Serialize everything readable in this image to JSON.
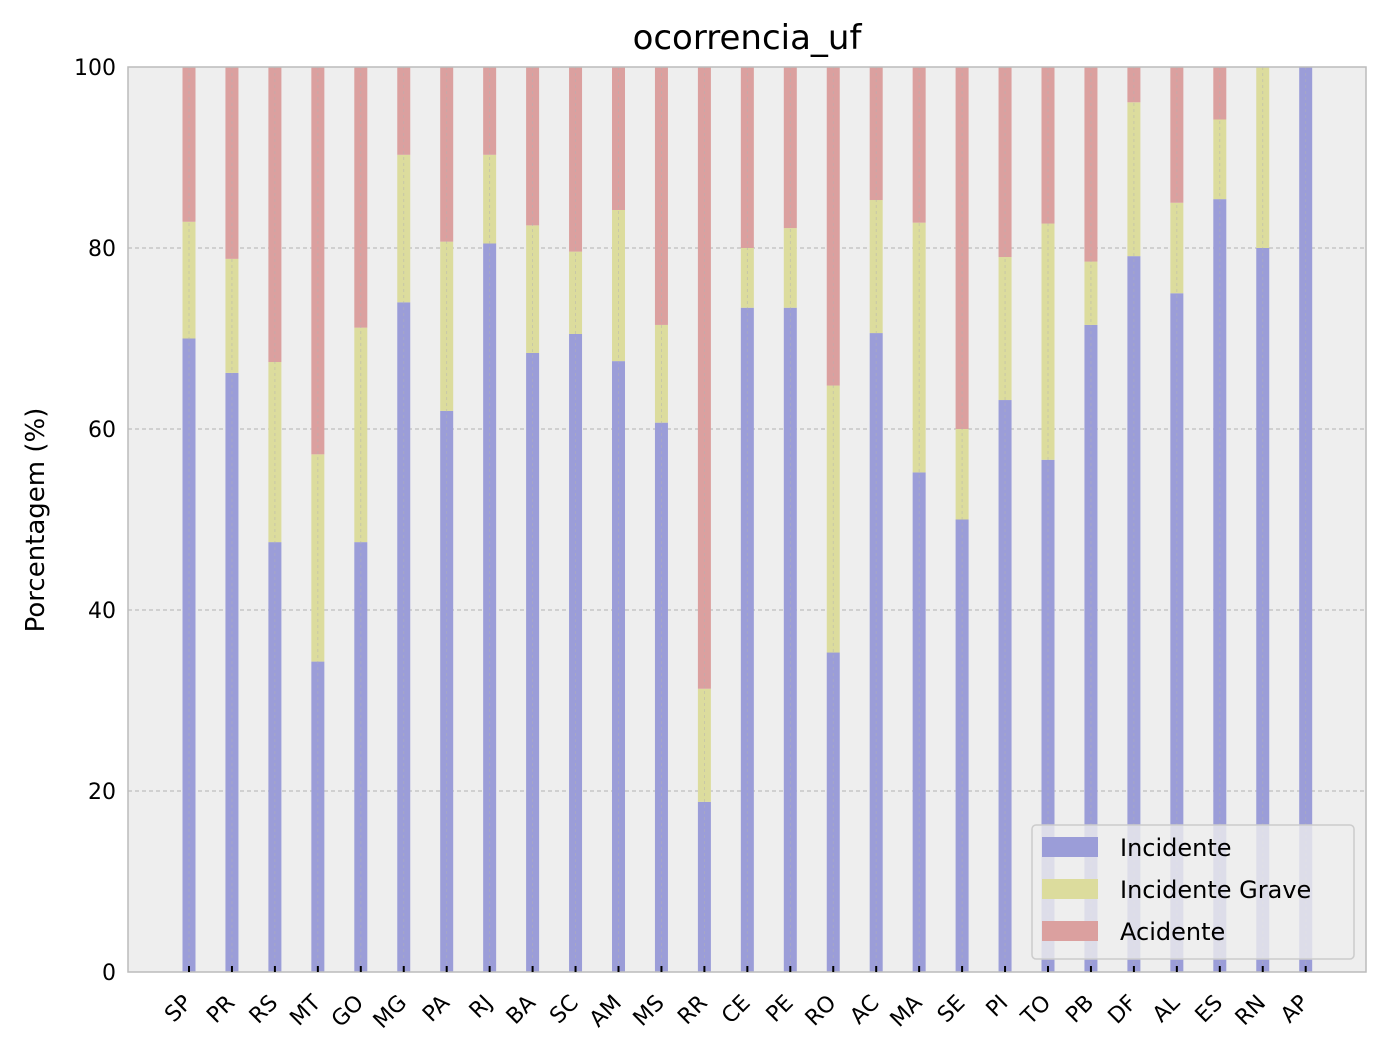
{
  "chart_data": {
    "type": "bar",
    "stacked": true,
    "title": "ocorrencia_uf",
    "xlabel": "",
    "ylabel": "Porcentagem (%)",
    "ylim": [
      0,
      100
    ],
    "yticks": [
      "0",
      "20",
      "40",
      "60",
      "80",
      "100"
    ],
    "grid": true,
    "legend_position": "lower-right",
    "categories": [
      "SP",
      "PR",
      "RS",
      "MT",
      "GO",
      "MG",
      "PA",
      "RJ",
      "BA",
      "SC",
      "AM",
      "MS",
      "RR",
      "CE",
      "PE",
      "RO",
      "AC",
      "MA",
      "SE",
      "PI",
      "TO",
      "PB",
      "DF",
      "AL",
      "ES",
      "RN",
      "AP"
    ],
    "series": [
      {
        "name": "Incidente",
        "color": "#9b9dd8",
        "values": [
          70.0,
          66.2,
          47.5,
          34.3,
          47.5,
          74.0,
          62.0,
          80.5,
          68.4,
          70.5,
          67.5,
          60.7,
          18.8,
          73.4,
          73.4,
          35.3,
          70.6,
          55.2,
          50.0,
          63.2,
          56.6,
          71.5,
          79.1,
          75.0,
          85.4,
          80.0,
          100.0
        ]
      },
      {
        "name": "Incidente Grave",
        "color": "#dcdc9d",
        "values": [
          12.9,
          12.6,
          19.9,
          22.9,
          23.7,
          16.3,
          18.7,
          9.8,
          14.1,
          9.1,
          16.7,
          10.8,
          12.5,
          6.6,
          8.8,
          29.5,
          14.7,
          27.6,
          10.0,
          15.8,
          26.1,
          7.0,
          17.0,
          10.0,
          8.8,
          20.0,
          0.0
        ]
      },
      {
        "name": "Acidente",
        "color": "#dba09f",
        "values": [
          17.1,
          21.2,
          32.6,
          42.8,
          28.8,
          9.7,
          19.3,
          9.7,
          17.5,
          20.4,
          15.8,
          28.5,
          68.7,
          20.0,
          17.8,
          35.2,
          14.7,
          17.2,
          40.0,
          21.0,
          17.3,
          21.5,
          3.9,
          15.0,
          5.8,
          0.0,
          0.0
        ]
      }
    ]
  }
}
